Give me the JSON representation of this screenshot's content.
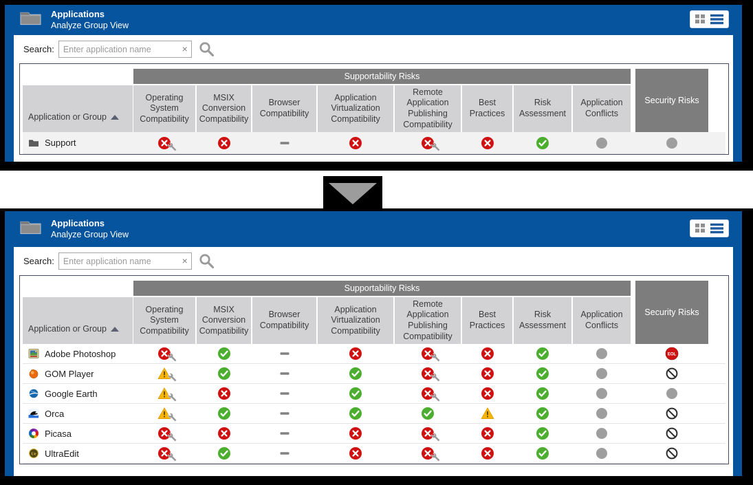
{
  "window": {
    "title": "Applications",
    "subtitle": "Analyze Group View",
    "search_label": "Search:",
    "search_placeholder": "Enter application name",
    "clear_icon": "×"
  },
  "table": {
    "first_column": "Application or Group",
    "group_header": "Supportability Risks",
    "security_header": "Security Risks",
    "columns": [
      "Operating System Compatibility",
      "MSIX Conversion Compatibility",
      "Browser Compatibility",
      "Application Virtualization Compatibility",
      "Remote Application Publishing Compatibility",
      "Best Practices",
      "Risk Assessment",
      "Application Conflicts"
    ]
  },
  "top_table": {
    "rows": [
      {
        "name": "Support",
        "icon": "folder",
        "statuses": [
          "error-fix",
          "error",
          "dash",
          "error",
          "error-fix",
          "error",
          "success",
          "na",
          "na"
        ]
      }
    ]
  },
  "bottom_table": {
    "rows": [
      {
        "name": "Adobe Photoshop",
        "icon": "photoshop",
        "statuses": [
          "error-fix",
          "success",
          "dash",
          "error",
          "error-fix",
          "error",
          "success",
          "na",
          "eol"
        ]
      },
      {
        "name": "GOM Player",
        "icon": "gom",
        "statuses": [
          "warning-fix",
          "success",
          "dash",
          "success",
          "error-fix",
          "error",
          "success",
          "na",
          "blocked"
        ]
      },
      {
        "name": "Google Earth",
        "icon": "earth",
        "statuses": [
          "warning-fix",
          "error",
          "dash",
          "success",
          "error-fix",
          "error",
          "success",
          "na",
          "na"
        ]
      },
      {
        "name": "Orca",
        "icon": "orca",
        "statuses": [
          "warning-fix",
          "success",
          "dash",
          "success",
          "success",
          "warning",
          "success",
          "na",
          "blocked"
        ]
      },
      {
        "name": "Picasa",
        "icon": "picasa",
        "statuses": [
          "error-fix",
          "error",
          "dash",
          "error",
          "error-fix",
          "error",
          "success",
          "na",
          "blocked"
        ]
      },
      {
        "name": "UltraEdit",
        "icon": "ultraedit",
        "statuses": [
          "error-fix",
          "success",
          "dash",
          "error",
          "error-fix",
          "error",
          "success",
          "na",
          "blocked"
        ]
      }
    ]
  },
  "status_legend": {
    "success": "green-check-icon",
    "error": "red-x-icon",
    "error-fix": "red-x-with-wrench-icon",
    "warning": "yellow-warning-triangle-icon",
    "warning-fix": "yellow-warning-with-wrench-icon",
    "dash": "not-applicable-dash-icon",
    "na": "gray-circle-icon",
    "blocked": "prohibited-icon",
    "eol": "end-of-life-badge"
  },
  "colors": {
    "header_blue": "#07549e",
    "band_gray": "#7d7d7d",
    "header_cell_gray": "#d2d2d4",
    "success_green": "#4cae2f",
    "error_red": "#d01111",
    "warning_amber": "#f7b50c",
    "neutral_gray": "#9e9e9e"
  }
}
